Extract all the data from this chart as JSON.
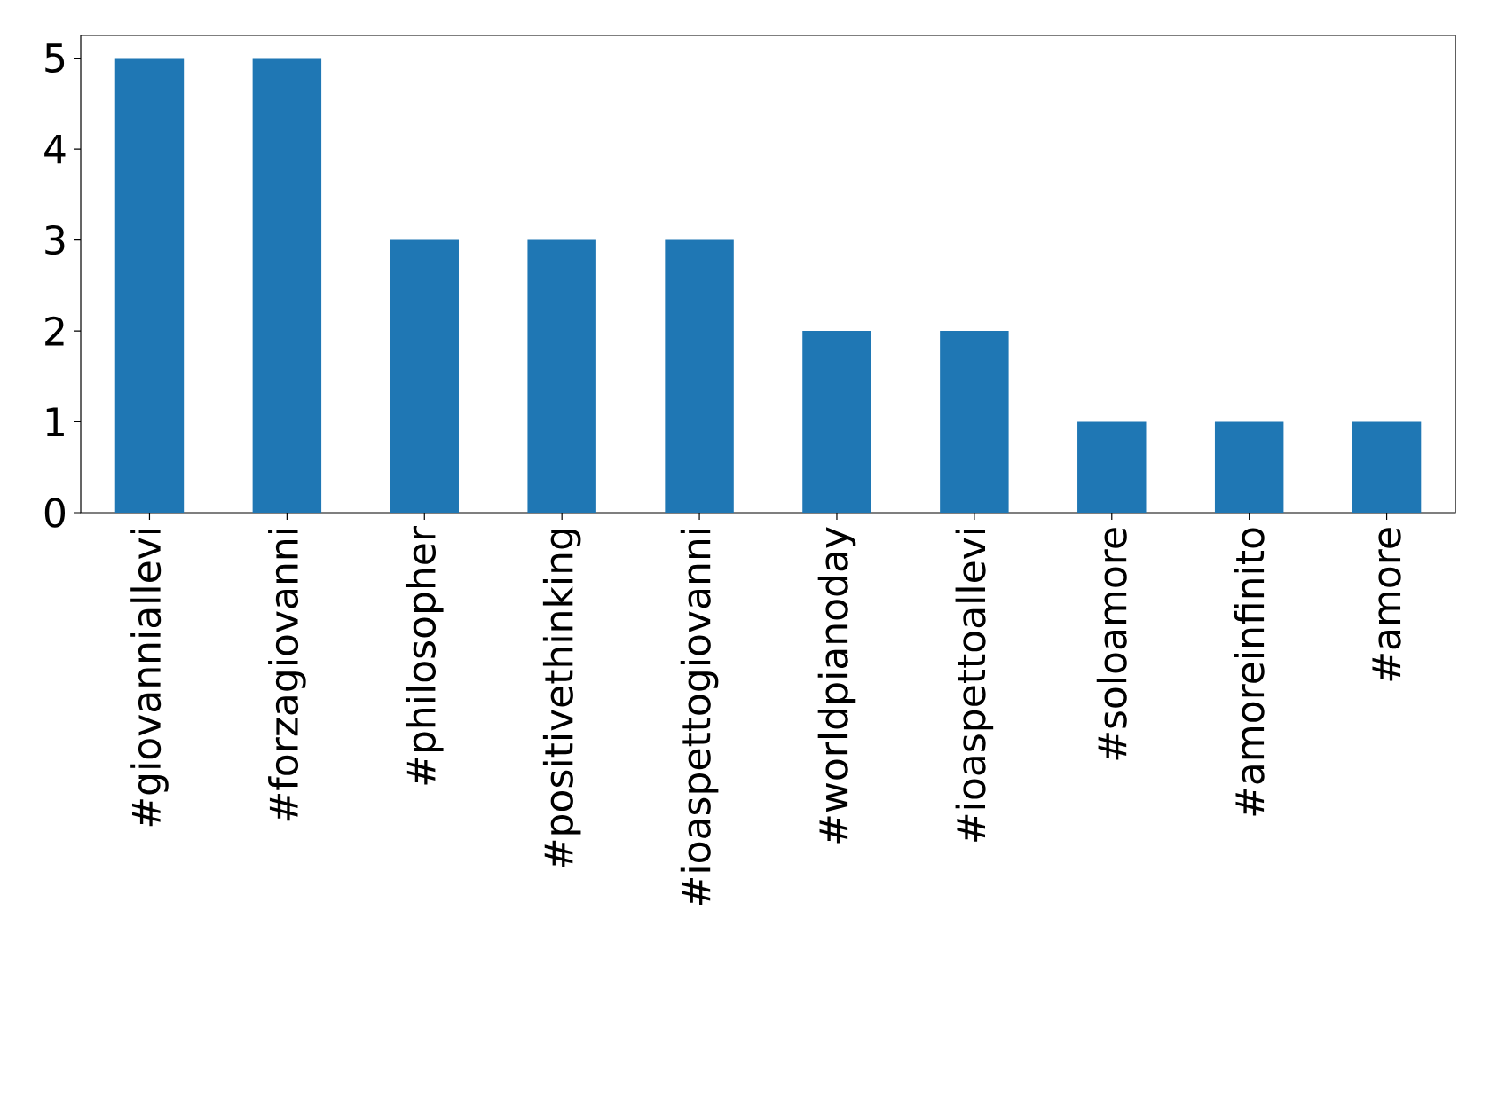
{
  "chart_data": {
    "type": "bar",
    "categories": [
      "#giovanniallevi",
      "#forzagiovanni",
      "#philosopher",
      "#positivethinking",
      "#ioaspettogiovanni",
      "#worldpianoday",
      "#ioaspettoallevi",
      "#soloamore",
      "#amoreinfinito",
      "#amore"
    ],
    "values": [
      5,
      5,
      3,
      3,
      3,
      2,
      2,
      1,
      1,
      1
    ],
    "color": "#1f77b4",
    "ylim": [
      0,
      5.25
    ],
    "yticks": [
      0,
      1,
      2,
      3,
      4,
      5
    ],
    "grid": false
  }
}
